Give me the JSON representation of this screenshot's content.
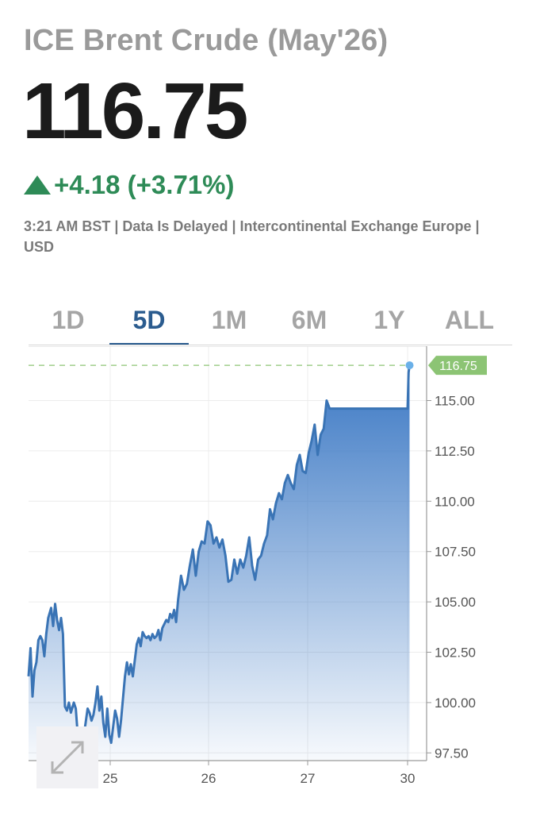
{
  "header": {
    "title": "ICE Brent Crude (May'26)",
    "price": "116.75",
    "change": "+4.18 (+3.71%)",
    "meta": "3:21 AM BST | Data Is Delayed | Intercontinental Exchange Europe | USD",
    "change_icon": "triangle-up-icon",
    "change_color": "#2e8b57"
  },
  "tabs": {
    "items": [
      "1D",
      "5D",
      "1M",
      "6M",
      "1Y",
      "ALL"
    ],
    "active": "5D"
  },
  "chart_data": {
    "type": "area",
    "ylim": [
      97,
      117.5
    ],
    "y_ticks": [
      "97.50",
      "100.00",
      "102.50",
      "105.00",
      "107.50",
      "110.00",
      "112.50",
      "115.00"
    ],
    "y_tick_values": [
      97.5,
      100,
      102.5,
      105,
      107.5,
      110,
      112.5,
      115
    ],
    "x_ticks": [
      "25",
      "26",
      "27",
      "30"
    ],
    "x_tick_values": [
      25,
      26,
      27,
      28
    ],
    "last_value_label": "116.75",
    "last_value": 116.75,
    "series": [
      {
        "x": [
          24.17,
          24.19,
          24.21,
          24.23,
          24.25,
          24.27,
          24.29,
          24.31,
          24.33,
          24.35,
          24.37,
          24.4,
          24.42,
          24.44,
          24.46,
          24.48,
          24.5,
          24.52,
          24.54,
          24.56,
          24.58,
          24.6,
          24.63,
          24.65,
          24.67,
          24.69,
          24.71,
          24.73,
          24.75,
          24.77,
          24.79,
          24.81,
          24.83,
          24.85,
          24.87,
          24.89,
          24.91,
          24.93,
          24.95,
          24.97,
          24.99,
          25.01,
          25.03,
          25.05,
          25.07,
          25.09,
          25.11,
          25.13,
          25.15,
          25.17,
          25.19,
          25.21,
          25.23,
          25.25,
          25.27,
          25.29,
          25.31,
          25.33,
          25.35,
          25.37,
          25.39,
          25.41,
          25.43,
          25.45,
          25.47,
          25.49,
          25.51,
          25.53,
          25.55,
          25.57,
          25.59,
          25.61,
          25.63,
          25.65,
          25.67,
          25.69,
          25.72,
          25.75,
          25.78,
          25.81,
          25.84,
          25.87,
          25.9,
          25.93,
          25.96,
          25.99,
          26.02,
          26.05,
          26.08,
          26.11,
          26.14,
          26.17,
          26.2,
          26.23,
          26.26,
          26.29,
          26.32,
          26.35,
          26.38,
          26.41,
          26.44,
          26.47,
          26.5,
          26.53,
          26.56,
          26.59,
          26.62,
          26.65,
          26.68,
          26.71,
          26.74,
          26.77,
          26.8,
          26.83,
          26.86,
          26.89,
          26.92,
          26.95,
          26.98,
          27.01,
          27.04,
          27.07,
          27.1,
          27.13,
          27.16,
          27.19,
          27.22,
          27.25,
          27.28,
          27.31,
          27.34,
          27.37,
          27.4,
          27.43,
          27.46,
          27.49,
          27.52,
          27.55,
          27.58,
          27.61,
          27.64,
          27.67,
          27.7,
          27.73,
          27.76,
          27.79,
          27.82,
          27.85,
          27.88,
          27.91,
          27.94,
          27.97,
          28.0,
          28.01,
          28.02
        ],
        "y": [
          101.3,
          102.7,
          100.3,
          101.6,
          102.0,
          103.1,
          103.3,
          103.1,
          102.3,
          103.4,
          104.2,
          104.7,
          103.8,
          104.9,
          104.1,
          103.6,
          104.2,
          103.4,
          99.8,
          99.6,
          100.0,
          99.5,
          100.0,
          99.7,
          98.4,
          98.2,
          97.4,
          98.3,
          99.0,
          99.7,
          99.5,
          99.1,
          99.4,
          100.0,
          100.8,
          99.6,
          100.3,
          99.0,
          98.3,
          99.7,
          98.4,
          98.0,
          98.8,
          99.6,
          99.2,
          98.3,
          99.1,
          100.2,
          101.3,
          102.0,
          101.4,
          101.9,
          101.3,
          102.1,
          102.9,
          103.2,
          102.8,
          103.5,
          103.3,
          103.2,
          103.3,
          103.1,
          103.4,
          103.2,
          103.3,
          103.6,
          103.1,
          103.7,
          103.9,
          104.1,
          104.0,
          104.4,
          104.2,
          104.6,
          104.0,
          105.1,
          106.3,
          105.6,
          105.9,
          106.8,
          107.6,
          106.3,
          107.5,
          108.0,
          107.9,
          109.0,
          108.8,
          107.9,
          108.2,
          107.7,
          108.1,
          107.3,
          106.0,
          106.1,
          107.1,
          106.4,
          107.1,
          106.7,
          107.3,
          108.2,
          106.8,
          106.1,
          107.1,
          107.3,
          107.9,
          108.3,
          109.6,
          109.1,
          109.9,
          110.4,
          110.1,
          110.9,
          111.3,
          110.9,
          110.6,
          111.8,
          112.3,
          111.5,
          111.4,
          112.4,
          113.0,
          113.8,
          112.3,
          113.3,
          113.6,
          115.0,
          114.6,
          114.6,
          114.6,
          114.6,
          114.6,
          114.6,
          114.6,
          114.6,
          114.6,
          114.6,
          114.6,
          114.6,
          114.6,
          114.6,
          114.6,
          114.6,
          114.6,
          114.6,
          114.6,
          114.6,
          114.6,
          114.6,
          114.6,
          114.6,
          114.6,
          114.6,
          114.6,
          116.4,
          116.75
        ]
      }
    ]
  }
}
